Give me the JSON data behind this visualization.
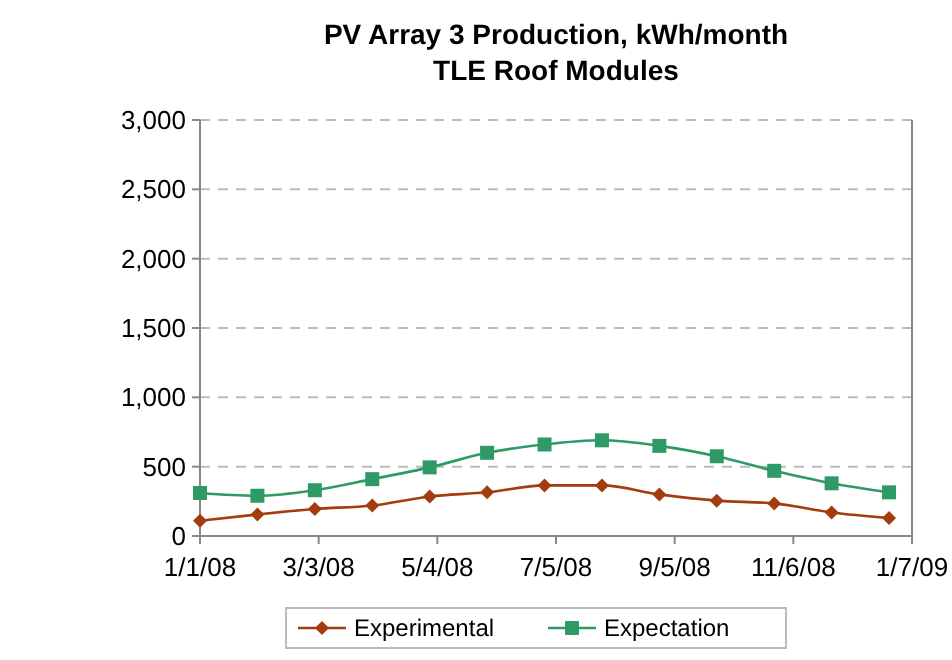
{
  "chart_data": {
    "type": "line",
    "title": "PV Array 3 Production, kWh/month\nTLE Roof Modules",
    "x": [
      "2008-01-01",
      "2008-01-31",
      "2008-03-01",
      "2008-03-31",
      "2008-04-30",
      "2008-05-30",
      "2008-06-29",
      "2008-07-29",
      "2008-08-28",
      "2008-09-27",
      "2008-10-27",
      "2008-11-26",
      "2008-12-26"
    ],
    "series": [
      {
        "name": "Experimental",
        "color": "#a33c0e",
        "marker": "diamond",
        "values": [
          110,
          155,
          195,
          220,
          285,
          315,
          365,
          365,
          300,
          255,
          235,
          170,
          130
        ]
      },
      {
        "name": "Expectation",
        "color": "#2e9a66",
        "marker": "square",
        "values": [
          310,
          290,
          330,
          410,
          495,
          600,
          660,
          690,
          650,
          575,
          470,
          380,
          315
        ]
      }
    ],
    "xlim": [
      "2008-01-01",
      "2009-01-07"
    ],
    "xticks": [
      {
        "value": "2008-01-01",
        "label": "1/1/08"
      },
      {
        "value": "2008-03-03",
        "label": "3/3/08"
      },
      {
        "value": "2008-05-04",
        "label": "5/4/08"
      },
      {
        "value": "2008-07-05",
        "label": "7/5/08"
      },
      {
        "value": "2008-09-05",
        "label": "9/5/08"
      },
      {
        "value": "2008-11-06",
        "label": "11/6/08"
      },
      {
        "value": "2009-01-07",
        "label": "1/7/09"
      }
    ],
    "ylim": [
      0,
      3000
    ],
    "yticks": [
      {
        "value": 0,
        "label": "0"
      },
      {
        "value": 500,
        "label": "500"
      },
      {
        "value": 1000,
        "label": "1,000"
      },
      {
        "value": 1500,
        "label": "1,500"
      },
      {
        "value": 2000,
        "label": "2,000"
      },
      {
        "value": 2500,
        "label": "2,500"
      },
      {
        "value": 3000,
        "label": "3,000"
      }
    ],
    "grid": "y",
    "line_style": "solid",
    "legend": "bottom"
  }
}
